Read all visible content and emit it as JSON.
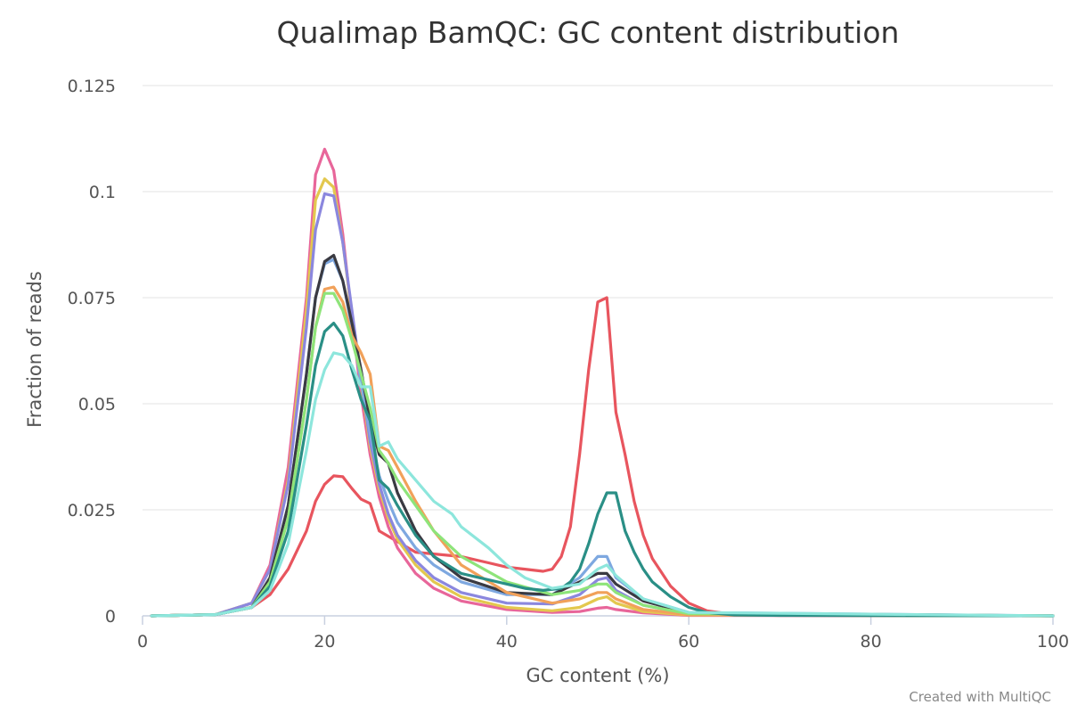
{
  "chart_data": {
    "type": "line",
    "title": "Qualimap BamQC: GC content distribution",
    "xlabel": "GC content (%)",
    "ylabel": "Fraction of reads",
    "xlim": [
      0,
      100
    ],
    "ylim": [
      0,
      0.125
    ],
    "x_ticks": [
      0,
      20,
      40,
      60,
      80,
      100
    ],
    "x_tick_labels": [
      "0",
      "20",
      "40",
      "60",
      "80",
      "100"
    ],
    "y_ticks": [
      0,
      0.025,
      0.05,
      0.075,
      0.1,
      0.125
    ],
    "y_tick_labels": [
      "0",
      "0.025",
      "0.05",
      "0.075",
      "0.1",
      "0.125"
    ],
    "grid": true,
    "legend": "none",
    "credit": "Created with MultiQC",
    "series": [
      {
        "color": "#e8555e",
        "x": [
          1,
          8,
          12,
          14,
          16,
          18,
          19,
          20,
          21,
          22,
          23,
          24,
          25,
          26,
          28,
          30,
          35,
          38,
          40,
          42,
          44,
          45,
          46,
          47,
          48,
          49,
          50,
          51,
          52,
          53,
          54,
          55,
          56,
          58,
          60,
          62,
          65,
          70,
          100
        ],
        "y": [
          0,
          0.0003,
          0.002,
          0.005,
          0.011,
          0.02,
          0.027,
          0.031,
          0.033,
          0.0328,
          0.03,
          0.0275,
          0.0265,
          0.02,
          0.0175,
          0.015,
          0.014,
          0.0125,
          0.0115,
          0.011,
          0.0105,
          0.011,
          0.014,
          0.021,
          0.038,
          0.058,
          0.074,
          0.075,
          0.048,
          0.038,
          0.027,
          0.019,
          0.0135,
          0.007,
          0.003,
          0.0012,
          0.0003,
          0.0001,
          0
        ]
      },
      {
        "color": "#e8669a",
        "x": [
          1,
          8,
          12,
          14,
          16,
          18,
          19,
          20,
          21,
          22,
          23,
          24,
          25,
          26,
          27,
          28,
          30,
          32,
          35,
          40,
          45,
          48,
          50,
          51,
          52,
          55,
          60,
          100
        ],
        "y": [
          0,
          0.0003,
          0.003,
          0.012,
          0.035,
          0.075,
          0.104,
          0.11,
          0.105,
          0.09,
          0.07,
          0.052,
          0.038,
          0.028,
          0.021,
          0.016,
          0.01,
          0.0065,
          0.0035,
          0.0015,
          0.0008,
          0.001,
          0.0018,
          0.002,
          0.0015,
          0.0007,
          0.0001,
          0
        ]
      },
      {
        "color": "#e3c84e",
        "x": [
          1,
          8,
          12,
          14,
          16,
          18,
          19,
          20,
          21,
          22,
          23,
          24,
          25,
          26,
          27,
          28,
          30,
          32,
          35,
          40,
          45,
          48,
          50,
          51,
          52,
          55,
          60,
          100
        ],
        "y": [
          0,
          0.0003,
          0.003,
          0.011,
          0.032,
          0.072,
          0.098,
          0.103,
          0.101,
          0.088,
          0.071,
          0.055,
          0.04,
          0.03,
          0.023,
          0.018,
          0.012,
          0.008,
          0.0045,
          0.002,
          0.0012,
          0.002,
          0.004,
          0.0045,
          0.003,
          0.001,
          0.0002,
          0
        ]
      },
      {
        "color": "#8b87de",
        "x": [
          1,
          8,
          12,
          14,
          16,
          18,
          19,
          20,
          21,
          22,
          23,
          24,
          25,
          26,
          27,
          28,
          30,
          32,
          35,
          40,
          45,
          48,
          50,
          51,
          52,
          55,
          60,
          100
        ],
        "y": [
          0,
          0.0003,
          0.003,
          0.011,
          0.031,
          0.068,
          0.091,
          0.0995,
          0.099,
          0.088,
          0.072,
          0.056,
          0.041,
          0.031,
          0.024,
          0.019,
          0.013,
          0.009,
          0.0055,
          0.003,
          0.0028,
          0.005,
          0.0085,
          0.009,
          0.006,
          0.0025,
          0.0005,
          0
        ]
      },
      {
        "color": "#7ea8e0",
        "x": [
          1,
          8,
          12,
          14,
          16,
          18,
          19,
          20,
          21,
          22,
          23,
          24,
          25,
          26,
          27,
          28,
          30,
          32,
          35,
          40,
          45,
          48,
          50,
          51,
          52,
          55,
          60,
          100
        ],
        "y": [
          0,
          0.0003,
          0.002,
          0.009,
          0.026,
          0.057,
          0.075,
          0.083,
          0.084,
          0.079,
          0.068,
          0.055,
          0.043,
          0.033,
          0.027,
          0.022,
          0.016,
          0.012,
          0.008,
          0.005,
          0.005,
          0.009,
          0.014,
          0.014,
          0.009,
          0.004,
          0.0008,
          0
        ]
      },
      {
        "color": "#3a3a42",
        "x": [
          1,
          8,
          12,
          14,
          16,
          18,
          19,
          20,
          21,
          22,
          23,
          24,
          25,
          26,
          27,
          28,
          30,
          32,
          35,
          40,
          45,
          48,
          50,
          51,
          52,
          55,
          60,
          100
        ],
        "y": [
          0,
          0.0003,
          0.002,
          0.009,
          0.026,
          0.057,
          0.075,
          0.0835,
          0.085,
          0.079,
          0.069,
          0.058,
          0.046,
          0.038,
          0.036,
          0.029,
          0.02,
          0.014,
          0.009,
          0.0055,
          0.005,
          0.008,
          0.01,
          0.01,
          0.0075,
          0.0035,
          0.0007,
          0
        ]
      },
      {
        "color": "#f1a15a",
        "x": [
          1,
          8,
          12,
          14,
          16,
          18,
          19,
          20,
          21,
          22,
          23,
          24,
          25,
          26,
          27,
          28,
          30,
          32,
          35,
          40,
          45,
          48,
          50,
          51,
          52,
          55,
          60,
          100
        ],
        "y": [
          0,
          0.0003,
          0.002,
          0.008,
          0.023,
          0.051,
          0.068,
          0.077,
          0.0775,
          0.074,
          0.066,
          0.062,
          0.057,
          0.04,
          0.039,
          0.035,
          0.027,
          0.02,
          0.012,
          0.0055,
          0.003,
          0.004,
          0.0055,
          0.0055,
          0.004,
          0.0015,
          0.0003,
          0
        ]
      },
      {
        "color": "#8ee47a",
        "x": [
          1,
          8,
          12,
          14,
          16,
          18,
          19,
          20,
          21,
          22,
          23,
          24,
          25,
          26,
          27,
          28,
          30,
          32,
          35,
          40,
          45,
          48,
          50,
          51,
          52,
          55,
          60,
          100
        ],
        "y": [
          0,
          0.0003,
          0.002,
          0.008,
          0.023,
          0.051,
          0.068,
          0.076,
          0.076,
          0.072,
          0.065,
          0.057,
          0.049,
          0.039,
          0.036,
          0.032,
          0.026,
          0.02,
          0.014,
          0.008,
          0.005,
          0.006,
          0.0075,
          0.0075,
          0.0055,
          0.0025,
          0.0005,
          0
        ]
      },
      {
        "color": "#2a8f86",
        "x": [
          1,
          8,
          12,
          14,
          16,
          18,
          19,
          20,
          21,
          22,
          23,
          24,
          25,
          26,
          27,
          28,
          30,
          32,
          35,
          40,
          42,
          44,
          46,
          47,
          48,
          49,
          50,
          51,
          52,
          53,
          54,
          55,
          56,
          58,
          60,
          62,
          65,
          70,
          100
        ],
        "y": [
          0,
          0.0003,
          0.002,
          0.007,
          0.02,
          0.045,
          0.059,
          0.067,
          0.069,
          0.066,
          0.058,
          0.051,
          0.046,
          0.032,
          0.03,
          0.026,
          0.019,
          0.014,
          0.01,
          0.0075,
          0.0065,
          0.006,
          0.0065,
          0.008,
          0.011,
          0.017,
          0.024,
          0.029,
          0.029,
          0.02,
          0.015,
          0.011,
          0.008,
          0.0045,
          0.002,
          0.0008,
          0.0002,
          0.0001,
          0
        ]
      },
      {
        "color": "#8de6dc",
        "x": [
          1,
          8,
          12,
          14,
          16,
          18,
          19,
          20,
          21,
          22,
          23,
          24,
          25,
          26,
          27,
          28,
          30,
          32,
          34,
          35,
          38,
          40,
          42,
          45,
          48,
          50,
          51,
          52,
          55,
          60,
          100
        ],
        "y": [
          0,
          0.0003,
          0.002,
          0.006,
          0.017,
          0.039,
          0.051,
          0.058,
          0.062,
          0.0615,
          0.059,
          0.054,
          0.054,
          0.04,
          0.041,
          0.037,
          0.032,
          0.027,
          0.024,
          0.021,
          0.016,
          0.012,
          0.009,
          0.0065,
          0.0075,
          0.011,
          0.012,
          0.0095,
          0.004,
          0.0008,
          0
        ]
      }
    ]
  }
}
